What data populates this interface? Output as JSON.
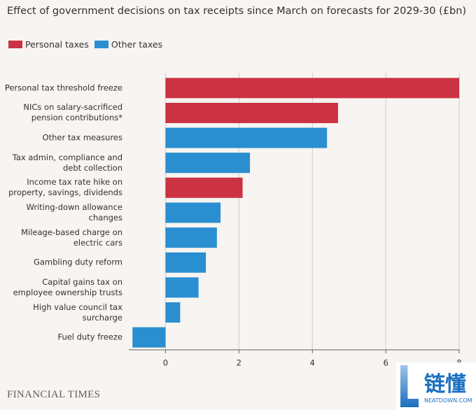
{
  "chart_data": {
    "type": "hbar",
    "title": "Effect of government decisions on tax receipts since March on forecasts for 2029-30 (£bn)",
    "categories": [
      "Personal tax threshold freeze",
      "NICs on salary-sacrificed\npension contributions*",
      "Other tax measures",
      "Tax admin, compliance and\ndebt collection",
      "Income tax rate hike on\nproperty, savings, dividends",
      "Writing-down allowance\nchanges",
      "Mileage-based charge on\nelectric cars",
      "Gambling duty reform",
      "Capital gains tax on\nemployee ownership trusts",
      "High value council tax\nsurcharge",
      "Fuel duty freeze"
    ],
    "series": [
      {
        "name": "Personal taxes",
        "color": "#cc3342",
        "values": [
          8.0,
          4.7,
          null,
          null,
          2.1,
          null,
          null,
          null,
          null,
          null,
          null
        ]
      },
      {
        "name": "Other taxes",
        "color": "#2a8fd0",
        "values": [
          null,
          null,
          4.4,
          2.3,
          null,
          1.5,
          1.4,
          1.1,
          0.9,
          0.4,
          -0.9
        ]
      }
    ],
    "xlim": [
      -1,
      8
    ],
    "xticks": [
      0,
      2,
      4,
      6,
      8
    ],
    "grid": true,
    "source": "FINANCIAL TIMES"
  },
  "watermark": {
    "name": "链懂",
    "url": "NEATDOWN.COM"
  }
}
